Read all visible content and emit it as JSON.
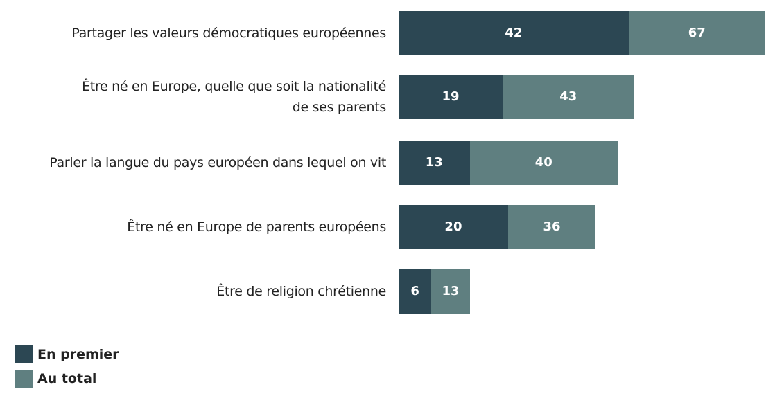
{
  "chart_data": {
    "type": "bar",
    "orientation": "horizontal",
    "overlay": true,
    "categories": [
      "Partager les valeurs démocratiques européennes",
      "Être né en Europe, quelle que soit la nationalité de ses parents",
      "Parler la langue du pays européen dans lequel on vit",
      "Être né en Europe de parents européens",
      "Être de religion chrétienne"
    ],
    "series": [
      {
        "name": "En premier",
        "color": "#2c4753",
        "values": [
          42,
          19,
          13,
          20,
          6
        ]
      },
      {
        "name": "Au total",
        "color": "#5f7f80",
        "values": [
          67,
          43,
          40,
          36,
          13
        ]
      }
    ]
  }
}
